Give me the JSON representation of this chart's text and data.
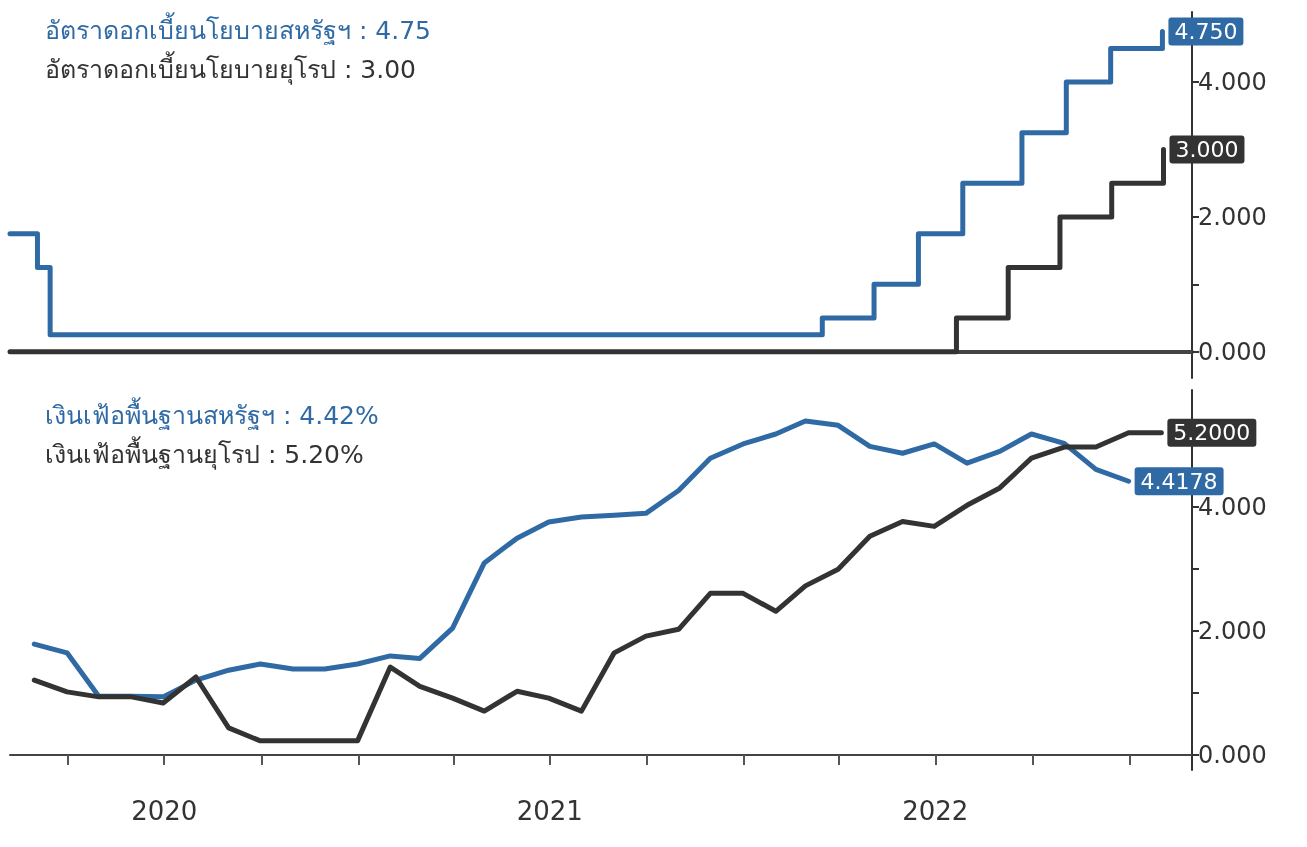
{
  "chart_data": [
    {
      "type": "step",
      "legend": "top left",
      "tick_labels": "y",
      "xlim": [
        "2020-02-06",
        "2023-03-01"
      ],
      "ylim": [
        -0.39,
        5.04
      ],
      "yticks": [
        {
          "value": 0,
          "label": "0.000"
        },
        {
          "value": 1,
          "label": null
        },
        {
          "value": 2,
          "label": "2.000"
        },
        {
          "value": 3,
          "label": null
        },
        {
          "value": 4,
          "label": "4.000"
        }
      ],
      "series": [
        {
          "name": "อัตราดอกเบี้ยนโยบายสหรัฐฯ : 4.75",
          "color": "#2f6aa5",
          "x": [
            "2020-02-06",
            "2020-03-03",
            "2020-03-15",
            "2022-03-16",
            "2022-05-04",
            "2022-06-15",
            "2022-07-27",
            "2022-09-21",
            "2022-11-02",
            "2022-12-14",
            "2023-02-01"
          ],
          "values": [
            1.75,
            1.25,
            0.25,
            0.5,
            1.0,
            1.75,
            2.5,
            3.25,
            4.0,
            4.5,
            4.75
          ],
          "value_labels": [
            null,
            null,
            null,
            null,
            null,
            null,
            null,
            null,
            null,
            null,
            "4.750"
          ]
        },
        {
          "name": "อัตราดอกเบี้ยนโยบายยุโรป : 3.00",
          "color": "#333333",
          "x": [
            "2020-02-06",
            "2022-07-21",
            "2022-09-08",
            "2022-10-27",
            "2022-12-15",
            "2023-02-02"
          ],
          "values": [
            0,
            0.5,
            1.25,
            2.0,
            2.5,
            3.0
          ],
          "value_labels": [
            null,
            null,
            null,
            null,
            null,
            "3.000"
          ]
        }
      ]
    },
    {
      "type": "line",
      "legend": "top left",
      "xlim": [
        "2020-02-06",
        "2023-03-01"
      ],
      "ylim": [
        -0.24,
        5.89
      ],
      "xticks": [
        {
          "value": "2020-04-01",
          "label": null
        },
        {
          "value": "2020-07-01",
          "label": "2020"
        },
        {
          "value": "2020-10-01",
          "label": null
        },
        {
          "value": "2021-01-01",
          "label": null
        },
        {
          "value": "2021-04-01",
          "label": null
        },
        {
          "value": "2021-07-01",
          "label": "2021"
        },
        {
          "value": "2021-10-01",
          "label": null
        },
        {
          "value": "2022-01-01",
          "label": null
        },
        {
          "value": "2022-04-01",
          "label": null
        },
        {
          "value": "2022-07-01",
          "label": "2022"
        },
        {
          "value": "2022-10-01",
          "label": null
        },
        {
          "value": "2023-01-01",
          "label": null
        }
      ],
      "yticks": [
        {
          "value": 0,
          "label": "0.000"
        },
        {
          "value": 1,
          "label": null
        },
        {
          "value": 2,
          "label": "2.000"
        },
        {
          "value": 3,
          "label": null
        },
        {
          "value": 4,
          "label": "4.000"
        }
      ],
      "series": [
        {
          "name": "เงินเฟ้อพื้นฐานสหรัฐฯ : 4.42%",
          "color": "#2f6aa5",
          "x": [
            "2020-02-29",
            "2020-03-31",
            "2020-04-30",
            "2020-05-31",
            "2020-06-30",
            "2020-07-31",
            "2020-08-31",
            "2020-09-30",
            "2020-10-31",
            "2020-11-30",
            "2020-12-31",
            "2021-01-31",
            "2021-02-28",
            "2021-03-31",
            "2021-04-30",
            "2021-05-31",
            "2021-06-30",
            "2021-07-31",
            "2021-08-31",
            "2021-09-30",
            "2021-10-31",
            "2021-11-30",
            "2021-12-31",
            "2022-01-31",
            "2022-02-28",
            "2022-03-31",
            "2022-04-30",
            "2022-05-31",
            "2022-06-30",
            "2022-07-31",
            "2022-08-31",
            "2022-09-30",
            "2022-10-31",
            "2022-11-30",
            "2022-12-31"
          ],
          "values": [
            1.79,
            1.65,
            0.95,
            0.95,
            0.94,
            1.21,
            1.37,
            1.47,
            1.39,
            1.39,
            1.47,
            1.6,
            1.56,
            2.05,
            3.1,
            3.5,
            3.76,
            3.84,
            3.87,
            3.9,
            4.27,
            4.79,
            5.02,
            5.18,
            5.39,
            5.32,
            4.98,
            4.87,
            5.02,
            4.71,
            4.9,
            5.18,
            5.03,
            4.61,
            4.4178
          ],
          "value_labels": [
            null,
            null,
            null,
            null,
            null,
            null,
            null,
            null,
            null,
            null,
            null,
            null,
            null,
            null,
            null,
            null,
            null,
            null,
            null,
            null,
            null,
            null,
            null,
            null,
            null,
            null,
            null,
            null,
            null,
            null,
            null,
            null,
            null,
            null,
            "4.4178"
          ]
        },
        {
          "name": "เงินเฟ้อพื้นฐานยุโรป : 5.20%",
          "color": "#333333",
          "x": [
            "2020-02-29",
            "2020-03-31",
            "2020-04-30",
            "2020-05-31",
            "2020-06-30",
            "2020-07-31",
            "2020-08-31",
            "2020-09-30",
            "2020-10-31",
            "2020-11-30",
            "2020-12-31",
            "2021-01-31",
            "2021-02-28",
            "2021-03-31",
            "2021-04-30",
            "2021-05-31",
            "2021-06-30",
            "2021-07-31",
            "2021-08-31",
            "2021-09-30",
            "2021-10-31",
            "2021-11-30",
            "2021-12-31",
            "2022-01-31",
            "2022-02-28",
            "2022-03-31",
            "2022-04-30",
            "2022-05-31",
            "2022-06-30",
            "2022-07-31",
            "2022-08-31",
            "2022-09-30",
            "2022-10-31",
            "2022-11-30",
            "2022-12-31",
            "2023-01-31"
          ],
          "values": [
            1.21,
            1.02,
            0.94,
            0.94,
            0.84,
            1.26,
            0.44,
            0.23,
            0.23,
            0.23,
            0.23,
            1.42,
            1.11,
            0.92,
            0.71,
            1.03,
            0.92,
            0.71,
            1.65,
            1.92,
            2.03,
            2.61,
            2.61,
            2.32,
            2.73,
            3.0,
            3.53,
            3.77,
            3.69,
            4.03,
            4.31,
            4.79,
            4.97,
            4.97,
            5.2,
            5.2
          ],
          "value_labels": [
            null,
            null,
            null,
            null,
            null,
            null,
            null,
            null,
            null,
            null,
            null,
            null,
            null,
            null,
            null,
            null,
            null,
            null,
            null,
            null,
            null,
            null,
            null,
            null,
            null,
            null,
            null,
            null,
            null,
            null,
            null,
            null,
            null,
            null,
            null,
            "5.2000"
          ]
        }
      ]
    }
  ]
}
